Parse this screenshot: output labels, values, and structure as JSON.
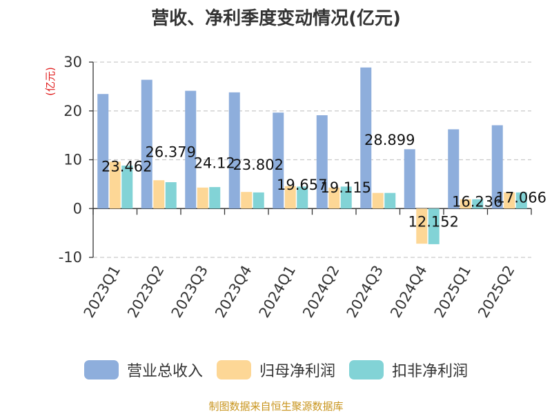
{
  "chart_data": {
    "type": "bar",
    "title": "营收、净利季度变动情况(亿元)",
    "ylabel": "(亿元)",
    "ylim": [
      -10,
      30
    ],
    "yticks": [
      30,
      20,
      10,
      0,
      -10
    ],
    "grid": true,
    "legend_position": "bottom",
    "categories": [
      "2023Q1",
      "2023Q2",
      "2023Q3",
      "2023Q4",
      "2024Q1",
      "2024Q2",
      "2024Q3",
      "2024Q4",
      "2025Q1",
      "2025Q2"
    ],
    "series": [
      {
        "name": "营业总收入",
        "color": "#8eaedc",
        "values": [
          23.462,
          26.379,
          24.12,
          23.802,
          19.657,
          19.115,
          28.899,
          12.152,
          16.236,
          17.066
        ],
        "labels": [
          "23.462",
          "26.379",
          "24.12",
          "23.802",
          "19.657",
          "19.115",
          "28.899",
          "12.152",
          "16.236",
          "17.066"
        ]
      },
      {
        "name": "归母净利润",
        "color": "#fdd796",
        "values": [
          9.6,
          5.8,
          4.3,
          3.4,
          4.6,
          4.3,
          3.2,
          -7.2,
          1.9,
          3.3
        ]
      },
      {
        "name": "扣非净利润",
        "color": "#82d3d6",
        "values": [
          8.8,
          5.4,
          4.4,
          3.3,
          4.5,
          4.5,
          3.2,
          -7.3,
          1.9,
          3.3
        ]
      }
    ]
  },
  "source_note": "制图数据来自恒生聚源数据库"
}
